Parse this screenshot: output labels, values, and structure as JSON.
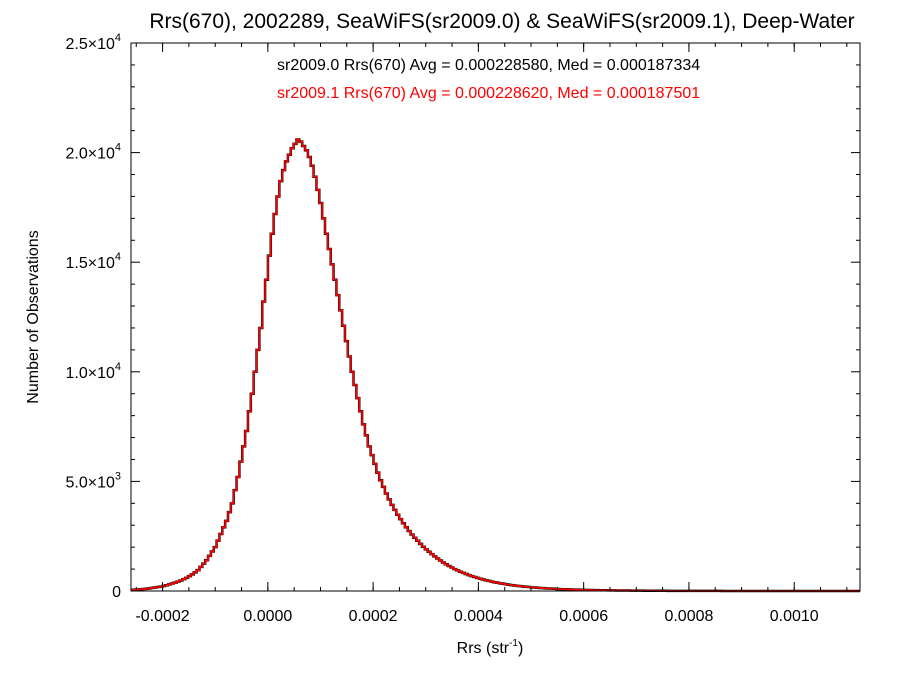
{
  "chart_data": {
    "type": "histogram",
    "title": "Rrs(670), 2002289, SeaWiFS(sr2009.0) & SeaWiFS(sr2009.1), Deep-Water",
    "xlabel": "Rrs (str",
    "xlabel_sup": "-1",
    "xlabel_end": ")",
    "ylabel": "Number of Observations",
    "xlim": [
      -0.00026,
      0.001125
    ],
    "ylim": [
      0,
      25000
    ],
    "x_ticks": [
      {
        "value": -0.0002,
        "label": "-0.0002"
      },
      {
        "value": 0.0,
        "label": "0.0000"
      },
      {
        "value": 0.0002,
        "label": "0.0002"
      },
      {
        "value": 0.0004,
        "label": "0.0004"
      },
      {
        "value": 0.0006,
        "label": "0.0006"
      },
      {
        "value": 0.0008,
        "label": "0.0008"
      },
      {
        "value": 0.001,
        "label": "0.0010"
      }
    ],
    "y_ticks": [
      {
        "value": 0,
        "mant": "0",
        "exp": ""
      },
      {
        "value": 5000,
        "mant": "5.0×10",
        "exp": "3"
      },
      {
        "value": 10000,
        "mant": "1.0×10",
        "exp": "4"
      },
      {
        "value": 15000,
        "mant": "1.5×10",
        "exp": "4"
      },
      {
        "value": 20000,
        "mant": "2.0×10",
        "exp": "4"
      },
      {
        "value": 25000,
        "mant": "2.5×10",
        "exp": "4"
      }
    ],
    "bin_start": -0.00026,
    "bin_width": 5.42e-06,
    "series": [
      {
        "name": "sr2009.0",
        "color": "#000000",
        "values": [
          50,
          60,
          70,
          80,
          90,
          100,
          120,
          140,
          160,
          180,
          200,
          230,
          260,
          300,
          340,
          380,
          430,
          480,
          540,
          600,
          680,
          760,
          850,
          950,
          1100,
          1250,
          1400,
          1600,
          1800,
          2000,
          2300,
          2600,
          2900,
          3200,
          3600,
          4000,
          4600,
          5200,
          5900,
          6600,
          7300,
          8200,
          9000,
          10000,
          11000,
          12000,
          13200,
          14200,
          15300,
          16300,
          17200,
          18000,
          18700,
          19200,
          19600,
          19900,
          20200,
          20400,
          20600,
          20500,
          20300,
          20100,
          19800,
          19400,
          18900,
          18300,
          17700,
          17000,
          16300,
          15600,
          14900,
          14200,
          13500,
          12800,
          12100,
          11400,
          10700,
          10000,
          9400,
          8800,
          8200,
          7600,
          7100,
          6600,
          6200,
          5800,
          5400,
          5050,
          4750,
          4450,
          4180,
          3930,
          3700,
          3480,
          3280,
          3090,
          2910,
          2740,
          2580,
          2430,
          2290,
          2150,
          2020,
          1900,
          1790,
          1680,
          1580,
          1480,
          1390,
          1300,
          1220,
          1140,
          1070,
          1000,
          940,
          880,
          825,
          775,
          725,
          680,
          640,
          600,
          560,
          525,
          490,
          460,
          430,
          400,
          375,
          350,
          330,
          305,
          285,
          268,
          250,
          235,
          220,
          205,
          192,
          180,
          168,
          158,
          148,
          138,
          130,
          122,
          114,
          107,
          100,
          94,
          88,
          82,
          77,
          72,
          68,
          64,
          60,
          56,
          52,
          49,
          46,
          43,
          40,
          38,
          36,
          34,
          32,
          30,
          28,
          26,
          25,
          23,
          22,
          21,
          20,
          19,
          18,
          17,
          16,
          15,
          14,
          13,
          12,
          11,
          10,
          10,
          9,
          9,
          8,
          8,
          7,
          7,
          6,
          6,
          6,
          5,
          5,
          5,
          4,
          4,
          4,
          4,
          3,
          3,
          3,
          3,
          3,
          2,
          2,
          2,
          2,
          2,
          2,
          2,
          1,
          1,
          1,
          1,
          1,
          1,
          1,
          1,
          1,
          1,
          1,
          1,
          1,
          1,
          1,
          1,
          1,
          1,
          1,
          1,
          1,
          1,
          1,
          1,
          1,
          1,
          1,
          1,
          1,
          1,
          1,
          1,
          1,
          1,
          1,
          1,
          1,
          1,
          1,
          1,
          1,
          1,
          1,
          1,
          1,
          1,
          1,
          1,
          1,
          1,
          1
        ]
      },
      {
        "name": "sr2009.1",
        "color": "#ff0000",
        "values": [
          50,
          60,
          70,
          80,
          90,
          100,
          120,
          140,
          160,
          180,
          200,
          230,
          260,
          300,
          340,
          380,
          430,
          480,
          540,
          600,
          680,
          760,
          850,
          950,
          1100,
          1250,
          1400,
          1600,
          1800,
          2000,
          2300,
          2600,
          2900,
          3200,
          3600,
          4000,
          4600,
          5200,
          5900,
          6600,
          7300,
          8200,
          9000,
          10000,
          11000,
          12000,
          13200,
          14200,
          15300,
          16300,
          17200,
          18000,
          18700,
          19200,
          19600,
          19900,
          20200,
          20400,
          20600,
          20500,
          20300,
          20100,
          19800,
          19400,
          18900,
          18300,
          17700,
          17000,
          16300,
          15600,
          14900,
          14200,
          13500,
          12800,
          12100,
          11400,
          10700,
          10000,
          9400,
          8800,
          8200,
          7600,
          7100,
          6600,
          6200,
          5800,
          5400,
          5050,
          4750,
          4450,
          4180,
          3930,
          3700,
          3480,
          3280,
          3090,
          2910,
          2740,
          2580,
          2430,
          2290,
          2150,
          2020,
          1900,
          1790,
          1680,
          1580,
          1480,
          1390,
          1300,
          1220,
          1140,
          1070,
          1000,
          940,
          880,
          825,
          775,
          725,
          680,
          640,
          600,
          560,
          525,
          490,
          460,
          430,
          400,
          375,
          350,
          330,
          305,
          285,
          268,
          250,
          235,
          220,
          205,
          192,
          180,
          168,
          158,
          148,
          138,
          130,
          122,
          114,
          107,
          100,
          94,
          88,
          82,
          77,
          72,
          68,
          64,
          60,
          56,
          52,
          49,
          46,
          43,
          40,
          38,
          36,
          34,
          32,
          30,
          28,
          26,
          25,
          23,
          22,
          21,
          20,
          19,
          18,
          17,
          16,
          15,
          14,
          13,
          12,
          11,
          10,
          10,
          9,
          9,
          8,
          8,
          7,
          7,
          6,
          6,
          6,
          5,
          5,
          5,
          4,
          4,
          4,
          4,
          3,
          3,
          3,
          3,
          3,
          2,
          2,
          2,
          2,
          2,
          2,
          2,
          1,
          1,
          1,
          1,
          1,
          1,
          1,
          1,
          1,
          1,
          1,
          1,
          1,
          1,
          1,
          1,
          1,
          1,
          1,
          1,
          1,
          1,
          1,
          1,
          1,
          1,
          1,
          1,
          1,
          1,
          1,
          1,
          1,
          1,
          1,
          1,
          1,
          1,
          1,
          1,
          1,
          1,
          1,
          1,
          1,
          1,
          1,
          1,
          1,
          1,
          1
        ]
      }
    ],
    "annotations": [
      {
        "text": "sr2009.0 Rrs(670) Avg = 0.000228580, Med = 0.000187334",
        "color": "#000000"
      },
      {
        "text": "sr2009.1 Rrs(670) Avg = 0.000228620, Med = 0.000187501",
        "color": "#ff0000"
      }
    ],
    "grid": false
  }
}
